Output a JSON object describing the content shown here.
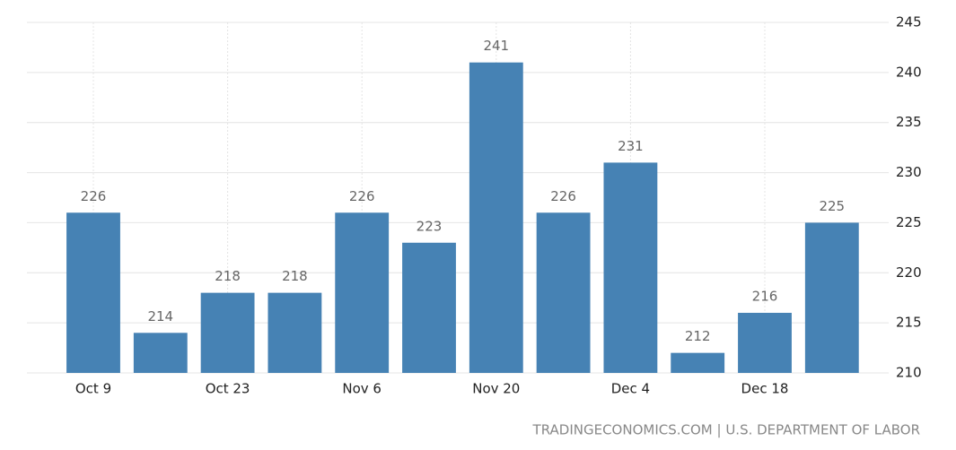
{
  "chart_data": {
    "type": "bar",
    "source": "TRADINGECONOMICS.COM | U.S. DEPARTMENT OF LABOR",
    "categories": [
      "Oct 9",
      null,
      "Oct 23",
      null,
      "Nov 6",
      null,
      "Nov 20",
      null,
      "Dec 4",
      null,
      "Dec 18",
      null
    ],
    "values": [
      226,
      214,
      218,
      218,
      226,
      223,
      241,
      226,
      231,
      212,
      216,
      225
    ],
    "color": "#4682b4",
    "ylim": [
      210,
      245
    ],
    "yticks": [
      210,
      215,
      220,
      225,
      230,
      235,
      240,
      245
    ],
    "y_axis_side": "right",
    "grid": true
  }
}
